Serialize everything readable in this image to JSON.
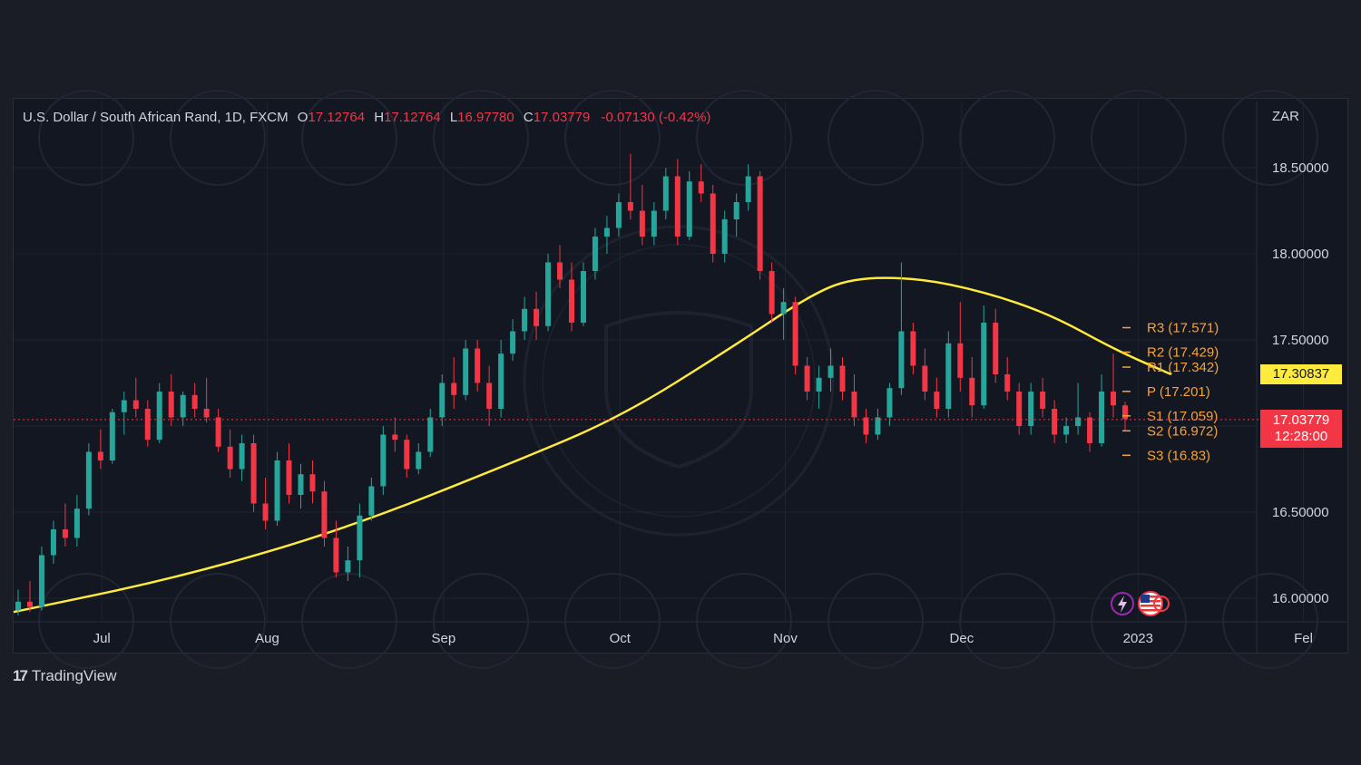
{
  "legend": {
    "symbol": "U.S. Dollar / South African Rand, 1D, FXCM",
    "open_label": "O",
    "open": "17.12764",
    "high_label": "H",
    "high": "17.12764",
    "low_label": "L",
    "low": "16.97780",
    "close_label": "C",
    "close": "17.03779",
    "change": "-0.07130 (-0.42%)"
  },
  "currency": "ZAR",
  "ma_price_tag": "17.30837",
  "last_price_tag": {
    "price": "17.03779",
    "countdown": "12:28:00"
  },
  "branding": {
    "name": "TradingView",
    "logo_icon": "tradingview-logo-icon"
  },
  "colors": {
    "up": "#26a69a",
    "down": "#f23645",
    "ma": "#ffeb3b",
    "pivot_text": "#f7a33a",
    "background": "#131722"
  },
  "icons": [
    "lightning-icon",
    "us-flag-icon"
  ],
  "chart_data": {
    "type": "candlestick",
    "title": "",
    "y_axis_ticks": [
      "18.50000",
      "18.00000",
      "17.50000",
      "16.50000",
      "16.00000"
    ],
    "ylim": [
      15.88,
      18.85
    ],
    "x_axis_ticks": [
      {
        "label": "Jul",
        "t": 0.08
      },
      {
        "label": "Aug",
        "t": 0.23
      },
      {
        "label": "Sep",
        "t": 0.39
      },
      {
        "label": "Oct",
        "t": 0.55
      },
      {
        "label": "Nov",
        "t": 0.7
      },
      {
        "label": "Dec",
        "t": 0.86
      },
      {
        "label": "2023",
        "t": 1.02
      },
      {
        "label": "Fel",
        "t": 1.17
      }
    ],
    "pivot_levels": [
      {
        "label": "R3 (17.571)",
        "value": 17.571
      },
      {
        "label": "R2 (17.429)",
        "value": 17.429
      },
      {
        "label": "R1 (17.342)",
        "value": 17.342
      },
      {
        "label": "P (17.201)",
        "value": 17.201
      },
      {
        "label": "S1 (17.059)",
        "value": 17.059
      },
      {
        "label": "S2 (16.972)",
        "value": 16.972
      },
      {
        "label": "S3 (16.83)",
        "value": 16.83
      }
    ],
    "current_price": 17.03779,
    "moving_average": [
      {
        "t": 0.0,
        "v": 15.92
      },
      {
        "t": 0.15,
        "v": 16.12
      },
      {
        "t": 0.3,
        "v": 16.4
      },
      {
        "t": 0.45,
        "v": 16.78
      },
      {
        "t": 0.55,
        "v": 17.05
      },
      {
        "t": 0.65,
        "v": 17.45
      },
      {
        "t": 0.72,
        "v": 17.75
      },
      {
        "t": 0.76,
        "v": 17.86
      },
      {
        "t": 0.82,
        "v": 17.86
      },
      {
        "t": 0.88,
        "v": 17.78
      },
      {
        "t": 0.94,
        "v": 17.65
      },
      {
        "t": 1.0,
        "v": 17.44
      },
      {
        "t": 1.05,
        "v": 17.3
      }
    ],
    "candles": [
      {
        "o": 15.93,
        "h": 16.05,
        "l": 15.9,
        "c": 15.98
      },
      {
        "o": 15.98,
        "h": 16.1,
        "l": 15.92,
        "c": 15.95
      },
      {
        "o": 15.95,
        "h": 16.3,
        "l": 15.93,
        "c": 16.25
      },
      {
        "o": 16.25,
        "h": 16.45,
        "l": 16.2,
        "c": 16.4
      },
      {
        "o": 16.4,
        "h": 16.55,
        "l": 16.3,
        "c": 16.35
      },
      {
        "o": 16.35,
        "h": 16.6,
        "l": 16.3,
        "c": 16.52
      },
      {
        "o": 16.52,
        "h": 16.9,
        "l": 16.48,
        "c": 16.85
      },
      {
        "o": 16.85,
        "h": 16.98,
        "l": 16.75,
        "c": 16.8
      },
      {
        "o": 16.8,
        "h": 17.1,
        "l": 16.78,
        "c": 17.08
      },
      {
        "o": 17.08,
        "h": 17.2,
        "l": 16.95,
        "c": 17.15
      },
      {
        "o": 17.15,
        "h": 17.28,
        "l": 17.05,
        "c": 17.1
      },
      {
        "o": 17.1,
        "h": 17.15,
        "l": 16.88,
        "c": 16.92
      },
      {
        "o": 16.92,
        "h": 17.25,
        "l": 16.9,
        "c": 17.2
      },
      {
        "o": 17.2,
        "h": 17.3,
        "l": 17.0,
        "c": 17.05
      },
      {
        "o": 17.05,
        "h": 17.2,
        "l": 17.0,
        "c": 17.18
      },
      {
        "o": 17.18,
        "h": 17.25,
        "l": 17.05,
        "c": 17.1
      },
      {
        "o": 17.1,
        "h": 17.28,
        "l": 17.02,
        "c": 17.05
      },
      {
        "o": 17.05,
        "h": 17.1,
        "l": 16.85,
        "c": 16.88
      },
      {
        "o": 16.88,
        "h": 16.98,
        "l": 16.7,
        "c": 16.75
      },
      {
        "o": 16.75,
        "h": 16.95,
        "l": 16.68,
        "c": 16.9
      },
      {
        "o": 16.9,
        "h": 16.95,
        "l": 16.5,
        "c": 16.55
      },
      {
        "o": 16.55,
        "h": 16.7,
        "l": 16.4,
        "c": 16.45
      },
      {
        "o": 16.45,
        "h": 16.85,
        "l": 16.42,
        "c": 16.8
      },
      {
        "o": 16.8,
        "h": 16.9,
        "l": 16.55,
        "c": 16.6
      },
      {
        "o": 16.6,
        "h": 16.78,
        "l": 16.52,
        "c": 16.72
      },
      {
        "o": 16.72,
        "h": 16.8,
        "l": 16.55,
        "c": 16.62
      },
      {
        "o": 16.62,
        "h": 16.68,
        "l": 16.3,
        "c": 16.35
      },
      {
        "o": 16.35,
        "h": 16.45,
        "l": 16.12,
        "c": 16.15
      },
      {
        "o": 16.15,
        "h": 16.3,
        "l": 16.1,
        "c": 16.22
      },
      {
        "o": 16.22,
        "h": 16.55,
        "l": 16.12,
        "c": 16.48
      },
      {
        "o": 16.48,
        "h": 16.7,
        "l": 16.45,
        "c": 16.65
      },
      {
        "o": 16.65,
        "h": 17.0,
        "l": 16.6,
        "c": 16.95
      },
      {
        "o": 16.95,
        "h": 17.05,
        "l": 16.85,
        "c": 16.92
      },
      {
        "o": 16.92,
        "h": 16.95,
        "l": 16.7,
        "c": 16.75
      },
      {
        "o": 16.75,
        "h": 16.9,
        "l": 16.72,
        "c": 16.85
      },
      {
        "o": 16.85,
        "h": 17.1,
        "l": 16.82,
        "c": 17.05
      },
      {
        "o": 17.05,
        "h": 17.3,
        "l": 17.0,
        "c": 17.25
      },
      {
        "o": 17.25,
        "h": 17.4,
        "l": 17.1,
        "c": 17.18
      },
      {
        "o": 17.18,
        "h": 17.5,
        "l": 17.15,
        "c": 17.45
      },
      {
        "o": 17.45,
        "h": 17.5,
        "l": 17.2,
        "c": 17.25
      },
      {
        "o": 17.25,
        "h": 17.35,
        "l": 17.0,
        "c": 17.1
      },
      {
        "o": 17.1,
        "h": 17.5,
        "l": 17.05,
        "c": 17.42
      },
      {
        "o": 17.42,
        "h": 17.62,
        "l": 17.38,
        "c": 17.55
      },
      {
        "o": 17.55,
        "h": 17.75,
        "l": 17.5,
        "c": 17.68
      },
      {
        "o": 17.68,
        "h": 17.78,
        "l": 17.5,
        "c": 17.58
      },
      {
        "o": 17.58,
        "h": 18.0,
        "l": 17.55,
        "c": 17.95
      },
      {
        "o": 17.95,
        "h": 18.05,
        "l": 17.8,
        "c": 17.85
      },
      {
        "o": 17.85,
        "h": 17.95,
        "l": 17.55,
        "c": 17.6
      },
      {
        "o": 17.6,
        "h": 17.95,
        "l": 17.58,
        "c": 17.9
      },
      {
        "o": 17.9,
        "h": 18.15,
        "l": 17.85,
        "c": 18.1
      },
      {
        "o": 18.1,
        "h": 18.22,
        "l": 18.0,
        "c": 18.15
      },
      {
        "o": 18.15,
        "h": 18.35,
        "l": 18.1,
        "c": 18.3
      },
      {
        "o": 18.3,
        "h": 18.58,
        "l": 18.2,
        "c": 18.25
      },
      {
        "o": 18.25,
        "h": 18.4,
        "l": 18.05,
        "c": 18.1
      },
      {
        "o": 18.1,
        "h": 18.3,
        "l": 18.05,
        "c": 18.25
      },
      {
        "o": 18.25,
        "h": 18.5,
        "l": 18.2,
        "c": 18.45
      },
      {
        "o": 18.45,
        "h": 18.55,
        "l": 18.05,
        "c": 18.1
      },
      {
        "o": 18.1,
        "h": 18.48,
        "l": 18.08,
        "c": 18.42
      },
      {
        "o": 18.42,
        "h": 18.52,
        "l": 18.3,
        "c": 18.35
      },
      {
        "o": 18.35,
        "h": 18.4,
        "l": 17.95,
        "c": 18.0
      },
      {
        "o": 18.0,
        "h": 18.25,
        "l": 17.95,
        "c": 18.2
      },
      {
        "o": 18.2,
        "h": 18.35,
        "l": 18.1,
        "c": 18.3
      },
      {
        "o": 18.3,
        "h": 18.52,
        "l": 18.25,
        "c": 18.45
      },
      {
        "o": 18.45,
        "h": 18.48,
        "l": 17.85,
        "c": 17.9
      },
      {
        "o": 17.9,
        "h": 17.95,
        "l": 17.6,
        "c": 17.65
      },
      {
        "o": 17.65,
        "h": 17.8,
        "l": 17.5,
        "c": 17.72
      },
      {
        "o": 17.72,
        "h": 17.75,
        "l": 17.3,
        "c": 17.35
      },
      {
        "o": 17.35,
        "h": 17.4,
        "l": 17.15,
        "c": 17.2
      },
      {
        "o": 17.2,
        "h": 17.35,
        "l": 17.1,
        "c": 17.28
      },
      {
        "o": 17.28,
        "h": 17.45,
        "l": 17.2,
        "c": 17.35
      },
      {
        "o": 17.35,
        "h": 17.4,
        "l": 17.15,
        "c": 17.2
      },
      {
        "o": 17.2,
        "h": 17.3,
        "l": 17.0,
        "c": 17.05
      },
      {
        "o": 17.05,
        "h": 17.1,
        "l": 16.9,
        "c": 16.95
      },
      {
        "o": 16.95,
        "h": 17.1,
        "l": 16.92,
        "c": 17.05
      },
      {
        "o": 17.05,
        "h": 17.25,
        "l": 17.0,
        "c": 17.22
      },
      {
        "o": 17.22,
        "h": 17.95,
        "l": 17.18,
        "c": 17.55
      },
      {
        "o": 17.55,
        "h": 17.6,
        "l": 17.3,
        "c": 17.35
      },
      {
        "o": 17.35,
        "h": 17.45,
        "l": 17.15,
        "c": 17.2
      },
      {
        "o": 17.2,
        "h": 17.28,
        "l": 17.05,
        "c": 17.1
      },
      {
        "o": 17.1,
        "h": 17.55,
        "l": 17.05,
        "c": 17.48
      },
      {
        "o": 17.48,
        "h": 17.72,
        "l": 17.2,
        "c": 17.28
      },
      {
        "o": 17.28,
        "h": 17.4,
        "l": 17.05,
        "c": 17.12
      },
      {
        "o": 17.12,
        "h": 17.7,
        "l": 17.1,
        "c": 17.6
      },
      {
        "o": 17.6,
        "h": 17.68,
        "l": 17.25,
        "c": 17.3
      },
      {
        "o": 17.3,
        "h": 17.4,
        "l": 17.15,
        "c": 17.2
      },
      {
        "o": 17.2,
        "h": 17.25,
        "l": 16.95,
        "c": 17.0
      },
      {
        "o": 17.0,
        "h": 17.25,
        "l": 16.95,
        "c": 17.2
      },
      {
        "o": 17.2,
        "h": 17.28,
        "l": 17.05,
        "c": 17.1
      },
      {
        "o": 17.1,
        "h": 17.15,
        "l": 16.9,
        "c": 16.95
      },
      {
        "o": 16.95,
        "h": 17.05,
        "l": 16.9,
        "c": 17.0
      },
      {
        "o": 17.0,
        "h": 17.25,
        "l": 16.95,
        "c": 17.05
      },
      {
        "o": 17.05,
        "h": 17.08,
        "l": 16.85,
        "c": 16.9
      },
      {
        "o": 16.9,
        "h": 17.3,
        "l": 16.88,
        "c": 17.2
      },
      {
        "o": 17.2,
        "h": 17.42,
        "l": 17.05,
        "c": 17.12
      },
      {
        "o": 17.12,
        "h": 17.14,
        "l": 16.97,
        "c": 17.04
      }
    ]
  }
}
